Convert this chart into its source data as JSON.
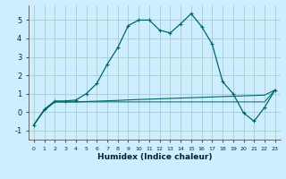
{
  "title": "",
  "xlabel": "Humidex (Indice chaleur)",
  "bg_color": "#cceeff",
  "grid_color": "#aacccc",
  "line_color": "#006666",
  "xlim": [
    -0.5,
    23.5
  ],
  "ylim": [
    -1.5,
    5.8
  ],
  "yticks": [
    -1,
    0,
    1,
    2,
    3,
    4,
    5
  ],
  "xtick_labels": [
    "0",
    "1",
    "2",
    "3",
    "4",
    "5",
    "6",
    "7",
    "8",
    "9",
    "10",
    "11",
    "12",
    "13",
    "14",
    "15",
    "16",
    "17",
    "18",
    "19",
    "20",
    "21",
    "22",
    "23"
  ],
  "series1_x": [
    0,
    1,
    2,
    3,
    4,
    5,
    6,
    7,
    8,
    9,
    10,
    11,
    12,
    13,
    14,
    15,
    16,
    17,
    18,
    19,
    20,
    21,
    22,
    23
  ],
  "series1_y": [
    -0.7,
    0.15,
    0.6,
    0.6,
    0.65,
    1.0,
    1.55,
    2.6,
    3.5,
    4.7,
    5.0,
    5.0,
    4.45,
    4.3,
    4.8,
    5.35,
    4.65,
    3.7,
    1.65,
    1.0,
    -0.05,
    -0.5,
    0.25,
    1.2
  ],
  "series2_x": [
    0,
    1,
    2,
    3,
    4,
    5,
    6,
    7,
    8,
    9,
    10,
    11,
    12,
    13,
    14,
    15,
    16,
    17,
    18,
    19,
    20,
    21,
    22,
    23
  ],
  "series2_y": [
    -0.7,
    0.1,
    0.55,
    0.55,
    0.55,
    0.57,
    0.59,
    0.61,
    0.63,
    0.66,
    0.68,
    0.7,
    0.72,
    0.74,
    0.76,
    0.78,
    0.8,
    0.82,
    0.84,
    0.86,
    0.88,
    0.9,
    0.92,
    1.2
  ],
  "series3_x": [
    0,
    1,
    2,
    3,
    4,
    5,
    6,
    7,
    8,
    9,
    10,
    11,
    12,
    13,
    14,
    15,
    16,
    17,
    18,
    19,
    20,
    21,
    22,
    23
  ],
  "series3_y": [
    -0.7,
    0.1,
    0.55,
    0.55,
    0.55,
    0.55,
    0.55,
    0.55,
    0.55,
    0.55,
    0.55,
    0.55,
    0.55,
    0.55,
    0.55,
    0.55,
    0.55,
    0.55,
    0.55,
    0.55,
    0.55,
    0.55,
    0.55,
    1.2
  ]
}
